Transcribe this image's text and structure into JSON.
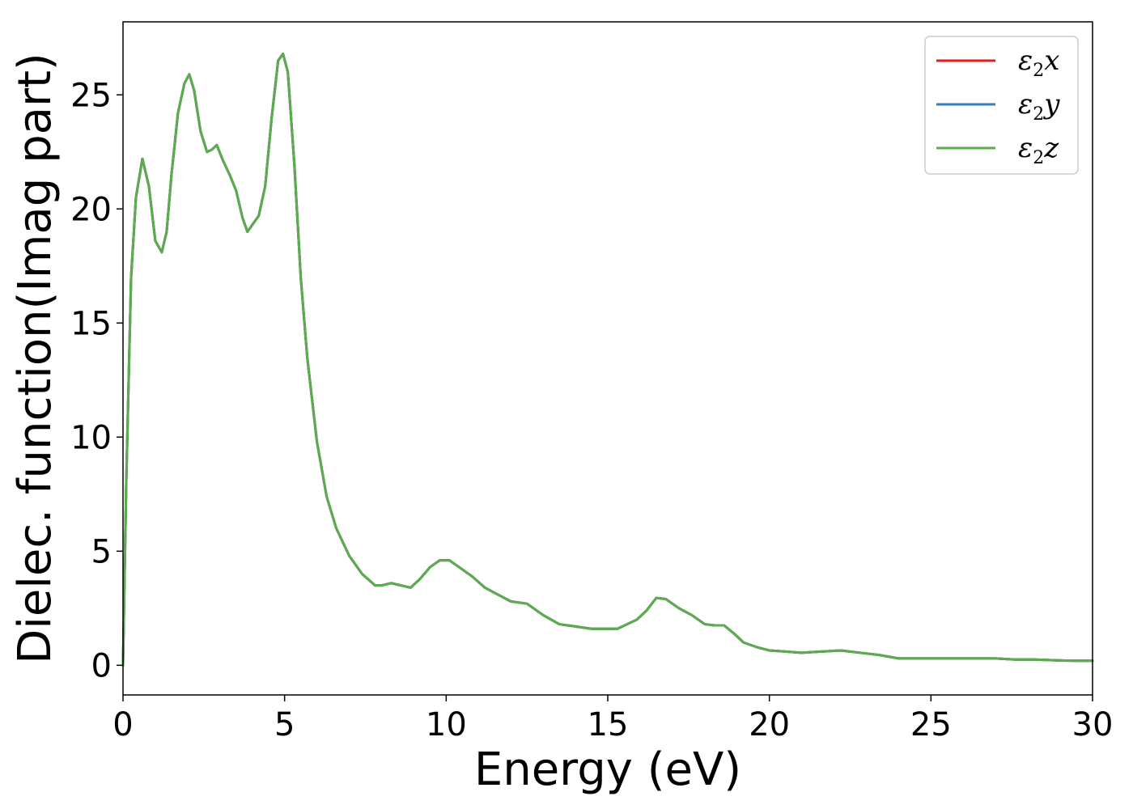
{
  "chart_data": {
    "type": "line",
    "xlabel": "Energy (eV)",
    "ylabel": "Dielec. function(Imag part)",
    "xlim": [
      0,
      30
    ],
    "ylim": [
      -1.3,
      28.2
    ],
    "xticks": [
      0,
      5,
      10,
      15,
      20,
      25,
      30
    ],
    "yticks": [
      0,
      5,
      10,
      15,
      20,
      25
    ],
    "grid": false,
    "legend_position": "top-right",
    "series": [
      {
        "name": "ε2x",
        "label_main": "ε",
        "label_sub": "2",
        "label_end": "x",
        "color": "#e41a1c",
        "x": [
          0,
          0.1,
          0.25,
          0.4,
          0.6,
          0.8,
          1.0,
          1.2,
          1.35,
          1.5,
          1.7,
          1.9,
          2.05,
          2.2,
          2.4,
          2.6,
          2.75,
          2.9,
          3.1,
          3.3,
          3.5,
          3.7,
          3.85,
          4.0,
          4.2,
          4.4,
          4.6,
          4.8,
          4.95,
          5.1,
          5.3,
          5.5,
          5.7,
          6.0,
          6.3,
          6.6,
          7.0,
          7.4,
          7.8,
          8.0,
          8.3,
          8.6,
          8.9,
          9.2,
          9.5,
          9.8,
          10.1,
          10.4,
          10.8,
          11.2,
          11.6,
          12.0,
          12.5,
          13.0,
          13.5,
          14.0,
          14.5,
          15.0,
          15.3,
          15.6,
          15.9,
          16.2,
          16.5,
          16.8,
          17.2,
          17.6,
          18.0,
          18.3,
          18.6,
          18.9,
          19.2,
          19.6,
          20.0,
          20.5,
          21.0,
          21.6,
          22.2,
          22.8,
          23.4,
          24.0,
          24.6,
          25.2,
          25.8,
          26.4,
          27.0,
          27.6,
          28.2,
          28.8,
          29.4,
          30.0
        ],
        "y": [
          0,
          8.0,
          17.0,
          20.5,
          22.2,
          21.0,
          18.6,
          18.1,
          19.0,
          21.5,
          24.2,
          25.5,
          25.9,
          25.2,
          23.4,
          22.5,
          22.6,
          22.8,
          22.1,
          21.5,
          20.8,
          19.6,
          19.0,
          19.3,
          19.7,
          21.0,
          24.0,
          26.5,
          26.8,
          26.0,
          22.0,
          17.0,
          13.5,
          9.8,
          7.4,
          6.0,
          4.8,
          4.0,
          3.5,
          3.5,
          3.6,
          3.5,
          3.4,
          3.8,
          4.3,
          4.6,
          4.6,
          4.3,
          3.9,
          3.4,
          3.1,
          2.8,
          2.7,
          2.2,
          1.8,
          1.7,
          1.6,
          1.6,
          1.6,
          1.8,
          2.0,
          2.4,
          2.95,
          2.9,
          2.5,
          2.2,
          1.8,
          1.75,
          1.75,
          1.4,
          1.0,
          0.8,
          0.65,
          0.6,
          0.55,
          0.6,
          0.65,
          0.55,
          0.45,
          0.3,
          0.3,
          0.3,
          0.3,
          0.3,
          0.3,
          0.25,
          0.25,
          0.22,
          0.2,
          0.2
        ]
      },
      {
        "name": "ε2y",
        "label_main": "ε",
        "label_sub": "2",
        "label_end": "y",
        "color": "#377eb8",
        "x": [
          0,
          0.1,
          0.25,
          0.4,
          0.6,
          0.8,
          1.0,
          1.2,
          1.35,
          1.5,
          1.7,
          1.9,
          2.05,
          2.2,
          2.4,
          2.6,
          2.75,
          2.9,
          3.1,
          3.3,
          3.5,
          3.7,
          3.85,
          4.0,
          4.2,
          4.4,
          4.6,
          4.8,
          4.95,
          5.1,
          5.3,
          5.5,
          5.7,
          6.0,
          6.3,
          6.6,
          7.0,
          7.4,
          7.8,
          8.0,
          8.3,
          8.6,
          8.9,
          9.2,
          9.5,
          9.8,
          10.1,
          10.4,
          10.8,
          11.2,
          11.6,
          12.0,
          12.5,
          13.0,
          13.5,
          14.0,
          14.5,
          15.0,
          15.3,
          15.6,
          15.9,
          16.2,
          16.5,
          16.8,
          17.2,
          17.6,
          18.0,
          18.3,
          18.6,
          18.9,
          19.2,
          19.6,
          20.0,
          20.5,
          21.0,
          21.6,
          22.2,
          22.8,
          23.4,
          24.0,
          24.6,
          25.2,
          25.8,
          26.4,
          27.0,
          27.6,
          28.2,
          28.8,
          29.4,
          30.0
        ],
        "y": [
          0,
          8.0,
          17.0,
          20.5,
          22.2,
          21.0,
          18.6,
          18.1,
          19.0,
          21.5,
          24.2,
          25.5,
          25.9,
          25.2,
          23.4,
          22.5,
          22.6,
          22.8,
          22.1,
          21.5,
          20.8,
          19.6,
          19.0,
          19.3,
          19.7,
          21.0,
          24.0,
          26.5,
          26.8,
          26.0,
          22.0,
          17.0,
          13.5,
          9.8,
          7.4,
          6.0,
          4.8,
          4.0,
          3.5,
          3.5,
          3.6,
          3.5,
          3.4,
          3.8,
          4.3,
          4.6,
          4.6,
          4.3,
          3.9,
          3.4,
          3.1,
          2.8,
          2.7,
          2.2,
          1.8,
          1.7,
          1.6,
          1.6,
          1.6,
          1.8,
          2.0,
          2.4,
          2.95,
          2.9,
          2.5,
          2.2,
          1.8,
          1.75,
          1.75,
          1.4,
          1.0,
          0.8,
          0.65,
          0.6,
          0.55,
          0.6,
          0.65,
          0.55,
          0.45,
          0.3,
          0.3,
          0.3,
          0.3,
          0.3,
          0.3,
          0.25,
          0.25,
          0.22,
          0.2,
          0.2
        ]
      },
      {
        "name": "ε2z",
        "label_main": "ε",
        "label_sub": "2",
        "label_end": "z",
        "color": "#5aac4d",
        "x": [
          0,
          0.1,
          0.25,
          0.4,
          0.6,
          0.8,
          1.0,
          1.2,
          1.35,
          1.5,
          1.7,
          1.9,
          2.05,
          2.2,
          2.4,
          2.6,
          2.75,
          2.9,
          3.1,
          3.3,
          3.5,
          3.7,
          3.85,
          4.0,
          4.2,
          4.4,
          4.6,
          4.8,
          4.95,
          5.1,
          5.3,
          5.5,
          5.7,
          6.0,
          6.3,
          6.6,
          7.0,
          7.4,
          7.8,
          8.0,
          8.3,
          8.6,
          8.9,
          9.2,
          9.5,
          9.8,
          10.1,
          10.4,
          10.8,
          11.2,
          11.6,
          12.0,
          12.5,
          13.0,
          13.5,
          14.0,
          14.5,
          15.0,
          15.3,
          15.6,
          15.9,
          16.2,
          16.5,
          16.8,
          17.2,
          17.6,
          18.0,
          18.3,
          18.6,
          18.9,
          19.2,
          19.6,
          20.0,
          20.5,
          21.0,
          21.6,
          22.2,
          22.8,
          23.4,
          24.0,
          24.6,
          25.2,
          25.8,
          26.4,
          27.0,
          27.6,
          28.2,
          28.8,
          29.4,
          30.0
        ],
        "y": [
          0,
          8.0,
          17.0,
          20.5,
          22.2,
          21.0,
          18.6,
          18.1,
          19.0,
          21.5,
          24.2,
          25.5,
          25.9,
          25.2,
          23.4,
          22.5,
          22.6,
          22.8,
          22.1,
          21.5,
          20.8,
          19.6,
          19.0,
          19.3,
          19.7,
          21.0,
          24.0,
          26.5,
          26.8,
          26.0,
          22.0,
          17.0,
          13.5,
          9.8,
          7.4,
          6.0,
          4.8,
          4.0,
          3.5,
          3.5,
          3.6,
          3.5,
          3.4,
          3.8,
          4.3,
          4.6,
          4.6,
          4.3,
          3.9,
          3.4,
          3.1,
          2.8,
          2.7,
          2.2,
          1.8,
          1.7,
          1.6,
          1.6,
          1.6,
          1.8,
          2.0,
          2.4,
          2.95,
          2.9,
          2.5,
          2.2,
          1.8,
          1.75,
          1.75,
          1.4,
          1.0,
          0.8,
          0.65,
          0.6,
          0.55,
          0.6,
          0.65,
          0.55,
          0.45,
          0.3,
          0.3,
          0.3,
          0.3,
          0.3,
          0.3,
          0.25,
          0.25,
          0.22,
          0.2,
          0.2
        ]
      }
    ]
  }
}
